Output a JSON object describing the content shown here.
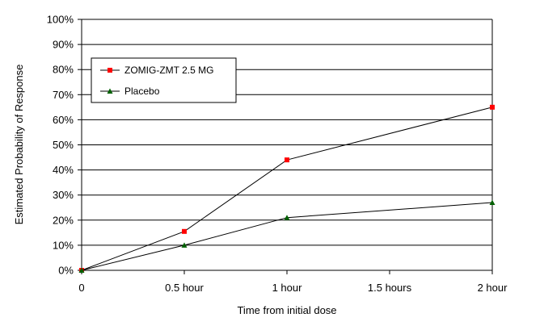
{
  "chart_data": {
    "type": "line",
    "xlabel": "Time from initial dose",
    "ylabel": "Estimated Probability of Response",
    "x_ticks": [
      "0",
      "0.5 hour",
      "1 hour",
      "1.5 hours",
      "2 hour"
    ],
    "y_ticks": [
      "0%",
      "10%",
      "20%",
      "30%",
      "40%",
      "50%",
      "60%",
      "70%",
      "80%",
      "90%",
      "100%"
    ],
    "xlim": [
      0,
      2
    ],
    "ylim": [
      0,
      100
    ],
    "grid": "horizontal",
    "legend_position": "top-left",
    "series": [
      {
        "name": "ZOMIG-ZMT 2.5 MG",
        "marker": "square",
        "color": "#ff0000",
        "x": [
          0,
          0.5,
          1,
          2
        ],
        "y": [
          0,
          15.5,
          44,
          65
        ]
      },
      {
        "name": "Placebo",
        "marker": "triangle",
        "color": "#006000",
        "x": [
          0,
          0.5,
          1,
          2
        ],
        "y": [
          0,
          10,
          21,
          27
        ]
      }
    ]
  }
}
